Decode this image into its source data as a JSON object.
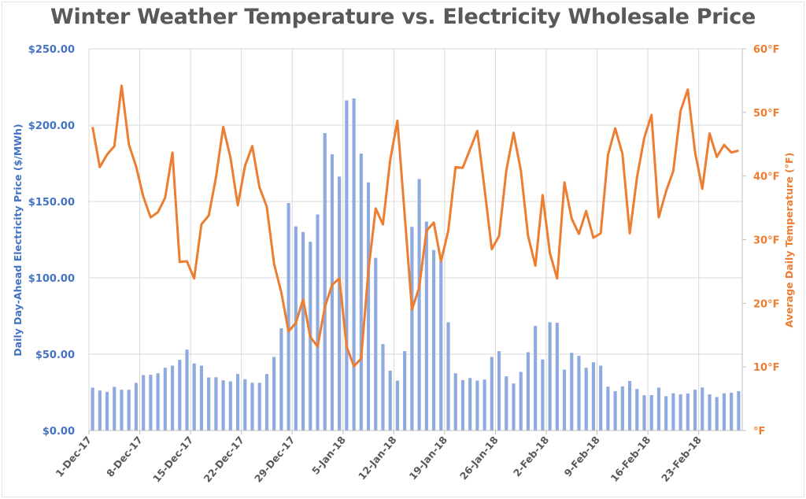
{
  "chart_data": {
    "type": "bar+line",
    "title": "Winter Weather Temperature vs. Electricity Wholesale Price",
    "ylabel": "Daily Day-Ahead Electricity Price ($/MWh)",
    "y2label": "Average Daily Temperature (°F)",
    "xlabel": "",
    "ylim": [
      0,
      250
    ],
    "y2lim": [
      0,
      60
    ],
    "y_ticks": [
      "$0.00",
      "$50.00",
      "$100.00",
      "$150.00",
      "$200.00",
      "$250.00"
    ],
    "y2_ticks": [
      "°F",
      "10°F",
      "20°F",
      "30°F",
      "40°F",
      "50°F",
      "60°F"
    ],
    "x_tick_labels": [
      "1-Dec-17",
      "8-Dec-17",
      "15-Dec-17",
      "22-Dec-17",
      "29-Dec-17",
      "5-Jan-18",
      "12-Jan-18",
      "19-Jan-18",
      "26-Jan-18",
      "2-Feb-18",
      "9-Feb-18",
      "16-Feb-18",
      "23-Feb-18"
    ],
    "x_range": [
      "2017-12-01",
      "2018-02-28"
    ],
    "grid": {
      "horizontal": true,
      "vertical": true
    },
    "colors": {
      "price": "#8eaadf",
      "temperature": "#ed7d31",
      "left_axis": "#4472c4",
      "right_axis": "#ed7d31",
      "title": "#595959"
    },
    "series": [
      {
        "type": "bar",
        "axis": "left",
        "values": [
          28.1,
          26.2,
          25.3,
          28.6,
          26.7,
          26.7,
          31.2,
          36.3,
          36.5,
          37.5,
          41.1,
          42.5,
          46.3,
          53.0,
          43.9,
          42.5,
          34.8,
          34.9,
          32.9,
          32.2,
          37.0,
          33.6,
          31.3,
          31.3,
          37.0,
          48.2,
          67.0,
          149.0,
          133.7,
          130.0,
          123.6,
          141.5,
          194.8,
          180.9,
          166.3,
          216.2,
          217.5,
          181.4,
          162.5,
          113.1,
          56.6,
          39.2,
          32.7,
          52.0,
          133.4,
          164.7,
          136.8,
          118.2,
          110.8,
          70.9,
          37.5,
          33.0,
          34.4,
          32.7,
          33.4,
          48.2,
          52.0,
          35.5,
          30.8,
          38.4,
          51.3,
          68.5,
          46.5,
          70.9,
          70.6,
          39.9,
          50.9,
          48.9,
          41.1,
          44.7,
          42.5,
          28.7,
          25.8,
          28.9,
          32.4,
          27.2,
          23.1,
          23.2,
          28.1,
          22.5,
          24.4,
          23.7,
          24.3,
          26.7,
          28.2,
          23.7,
          21.9,
          24.4,
          24.8,
          25.8
        ]
      },
      {
        "type": "line",
        "axis": "right",
        "values": [
          47.7,
          41.4,
          43.4,
          44.7,
          54.2,
          45.0,
          41.5,
          36.7,
          33.5,
          34.3,
          36.6,
          43.7,
          26.5,
          26.6,
          23.9,
          32.4,
          33.8,
          39.8,
          47.7,
          42.9,
          35.4,
          41.6,
          44.7,
          38.2,
          35.2,
          26.2,
          21.7,
          15.6,
          16.9,
          20.6,
          14.7,
          13.2,
          19.4,
          22.9,
          23.9,
          13.2,
          10.1,
          11.3,
          25.2,
          34.9,
          32.4,
          42.5,
          48.7,
          33.8,
          19.0,
          22.5,
          31.4,
          32.7,
          26.6,
          31.4,
          41.4,
          41.3,
          44.2,
          47.1,
          38.0,
          28.5,
          30.6,
          40.9,
          46.8,
          40.9,
          30.6,
          25.9,
          37.0,
          27.9,
          23.9,
          39.0,
          33.3,
          30.9,
          34.5,
          30.3,
          31.0,
          43.3,
          47.5,
          43.5,
          31.0,
          39.8,
          46.0,
          49.6,
          33.5,
          37.6,
          40.8,
          50.2,
          53.6,
          43.7,
          38.0,
          46.7,
          43.0,
          44.9,
          43.7,
          44.0
        ]
      }
    ]
  }
}
